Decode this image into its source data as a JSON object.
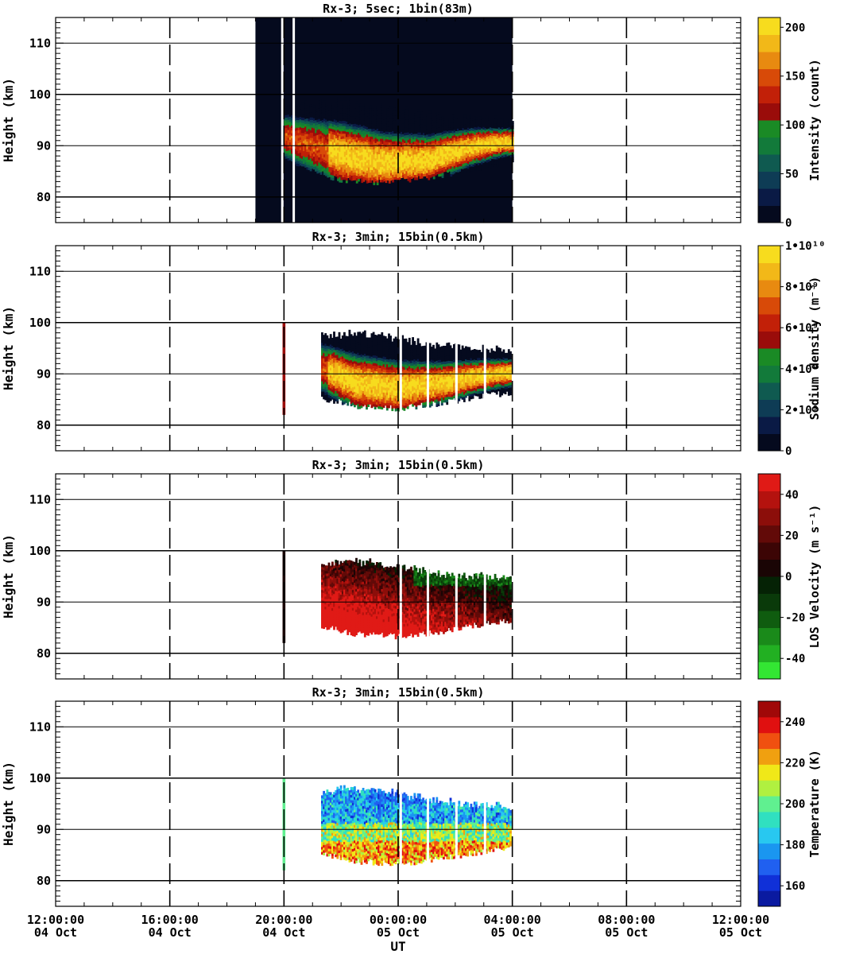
{
  "chart_data": [
    {
      "type": "heatmap",
      "title": "Rx-3;  5sec; 1bin(83m)",
      "ylabel": "Height (km)",
      "ylim": [
        75,
        115
      ],
      "yticks": [
        80,
        90,
        100,
        110
      ],
      "colorbar": {
        "label": "Intensity (count)",
        "range": [
          0,
          210
        ],
        "ticks": [
          {
            "v": 0,
            "t": "0"
          },
          {
            "v": 50,
            "t": "50"
          },
          {
            "v": 100,
            "t": "100"
          },
          {
            "v": 150,
            "t": "150"
          },
          {
            "v": 200,
            "t": "200"
          }
        ],
        "colors": [
          "#050a1e",
          "#0a1a45",
          "#0e3c55",
          "#0f5a50",
          "#127a3a",
          "#1a8a25",
          "#9a0c0a",
          "#c22008",
          "#d84a08",
          "#e88a10",
          "#f2b818",
          "#f7dc1e"
        ]
      },
      "data_extent_hours": [
        19.0,
        28.0
      ],
      "layer_profile": [
        [
          20.0,
          91.5,
          88.0,
          96.5
        ],
        [
          22.0,
          88.0,
          84.5,
          97.5
        ],
        [
          23.5,
          86.5,
          84.0,
          96.0
        ],
        [
          25.0,
          87.0,
          85.0,
          95.0
        ],
        [
          26.5,
          89.5,
          86.5,
          94.0
        ],
        [
          27.7,
          90.5,
          88.0,
          93.5
        ]
      ],
      "peak_value": 200
    },
    {
      "type": "heatmap",
      "title": "Rx-3; 3min; 15bin(0.5km)",
      "ylabel": "Height (km)",
      "ylim": [
        75,
        115
      ],
      "yticks": [
        80,
        90,
        100,
        110
      ],
      "colorbar": {
        "label": "Sodium density (m⁻³)",
        "range": [
          0,
          10000000000
        ],
        "ticks": [
          {
            "v": 0,
            "t": "0"
          },
          {
            "v": 2000000000,
            "t": "2•10⁹"
          },
          {
            "v": 4000000000,
            "t": "4•10⁹"
          },
          {
            "v": 6000000000,
            "t": "6•10⁹"
          },
          {
            "v": 8000000000,
            "t": "8•10⁹"
          },
          {
            "v": 10000000000,
            "t": "1•10¹⁰"
          }
        ],
        "colors": [
          "#050a1e",
          "#0a1a45",
          "#0e3c55",
          "#0f5a50",
          "#127a3a",
          "#1a8a25",
          "#9a0c0a",
          "#c22008",
          "#d84a08",
          "#e88a10",
          "#f2b818",
          "#f7dc1e"
        ]
      },
      "data_extent_hours": [
        21.3,
        27.9
      ],
      "layer_profile": [
        [
          21.3,
          91.0,
          86.5,
          96.0
        ],
        [
          22.5,
          88.0,
          85.0,
          96.5
        ],
        [
          24.0,
          87.0,
          84.5,
          95.5
        ],
        [
          25.5,
          88.0,
          85.5,
          94.0
        ],
        [
          27.0,
          89.5,
          87.0,
          93.5
        ],
        [
          27.9,
          90.0,
          87.5,
          93.0
        ]
      ],
      "peak_value": 10000000000
    },
    {
      "type": "heatmap",
      "title": "Rx-3; 3min; 15bin(0.5km)",
      "ylabel": "Height (km)",
      "ylim": [
        75,
        115
      ],
      "yticks": [
        80,
        90,
        100,
        110
      ],
      "colorbar": {
        "label": "LOS Velocity (m s⁻¹)",
        "range": [
          -50,
          50
        ],
        "ticks": [
          {
            "v": -40,
            "t": "-40"
          },
          {
            "v": -20,
            "t": "-20"
          },
          {
            "v": 0,
            "t": "0"
          },
          {
            "v": 20,
            "t": "20"
          },
          {
            "v": 40,
            "t": "40"
          }
        ],
        "colors": [
          "#33e633",
          "#22b022",
          "#1a8a1a",
          "#0f5c0f",
          "#0a3a0a",
          "#052205",
          "#1a0505",
          "#3c0505",
          "#620a08",
          "#8c0e0a",
          "#b4120e",
          "#e01a16"
        ]
      },
      "data_extent_hours": [
        21.3,
        27.9
      ],
      "trend_note": "",
      "peak_value": 40
    },
    {
      "type": "heatmap",
      "title": "Rx-3; 3min; 15bin(0.5km)",
      "ylabel": "Height (km)",
      "xlabel": "UT",
      "ylim": [
        75,
        115
      ],
      "yticks": [
        80,
        90,
        100,
        110
      ],
      "colorbar": {
        "label": "Temperature (K)",
        "range": [
          150,
          250
        ],
        "ticks": [
          {
            "v": 160,
            "t": "160"
          },
          {
            "v": 180,
            "t": "180"
          },
          {
            "v": 200,
            "t": "200"
          },
          {
            "v": 220,
            "t": "220"
          },
          {
            "v": 240,
            "t": "240"
          }
        ],
        "colors": [
          "#0a1aa0",
          "#1030d8",
          "#2060f0",
          "#1a96f0",
          "#28c8f0",
          "#30e0c0",
          "#60f090",
          "#b0f040",
          "#f0e818",
          "#f0a010",
          "#f05010",
          "#e01010",
          "#a00808"
        ]
      },
      "data_extent_hours": [
        21.3,
        27.9
      ],
      "peak_value": 245
    }
  ],
  "x_axis": {
    "label": "UT",
    "range_hours": [
      12,
      36
    ],
    "ticks": [
      {
        "h": 12,
        "time": "12:00:00",
        "date": "04 Oct"
      },
      {
        "h": 16,
        "time": "16:00:00",
        "date": "04 Oct"
      },
      {
        "h": 20,
        "time": "20:00:00",
        "date": "04 Oct"
      },
      {
        "h": 24,
        "time": "00:00:00",
        "date": "05 Oct"
      },
      {
        "h": 28,
        "time": "04:00:00",
        "date": "05 Oct"
      },
      {
        "h": 32,
        "time": "08:00:00",
        "date": "05 Oct"
      },
      {
        "h": 36,
        "time": "12:00:00",
        "date": "05 Oct"
      }
    ]
  }
}
